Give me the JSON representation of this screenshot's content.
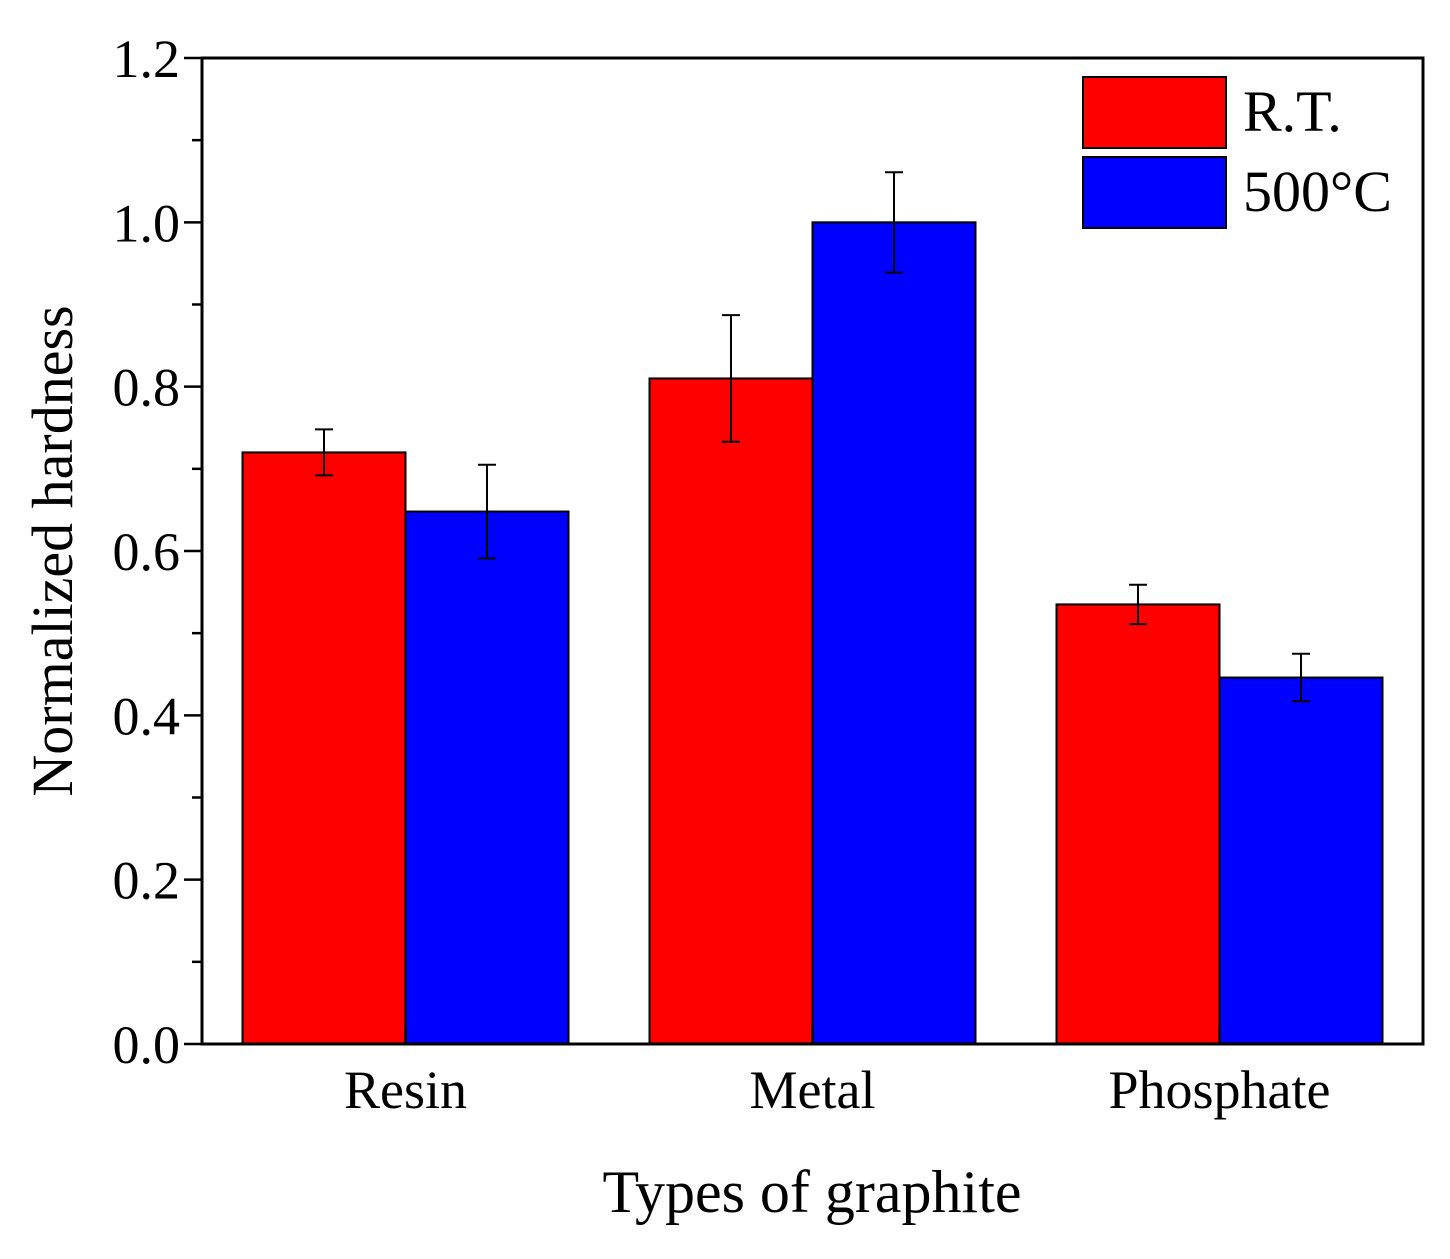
{
  "chart_data": {
    "type": "bar",
    "title": "",
    "xlabel": "Types of graphite",
    "ylabel": "Normalized hardness",
    "categories": [
      "Resin",
      "Metal",
      "Phosphate"
    ],
    "series": [
      {
        "name": "R.T.",
        "color": "#ff0000",
        "values": [
          0.72,
          0.81,
          0.535
        ],
        "errors": [
          0.028,
          0.077,
          0.024
        ]
      },
      {
        "name": "500°C",
        "color": "#0000ff",
        "values": [
          0.648,
          1.0,
          0.446
        ],
        "errors": [
          0.057,
          0.061,
          0.029
        ]
      }
    ],
    "ylim": [
      0,
      1.2
    ],
    "yticks": [
      "0.0",
      "0.2",
      "0.4",
      "0.6",
      "0.8",
      "1.0",
      "1.2"
    ],
    "grid": false,
    "legend_position": "top-right"
  }
}
